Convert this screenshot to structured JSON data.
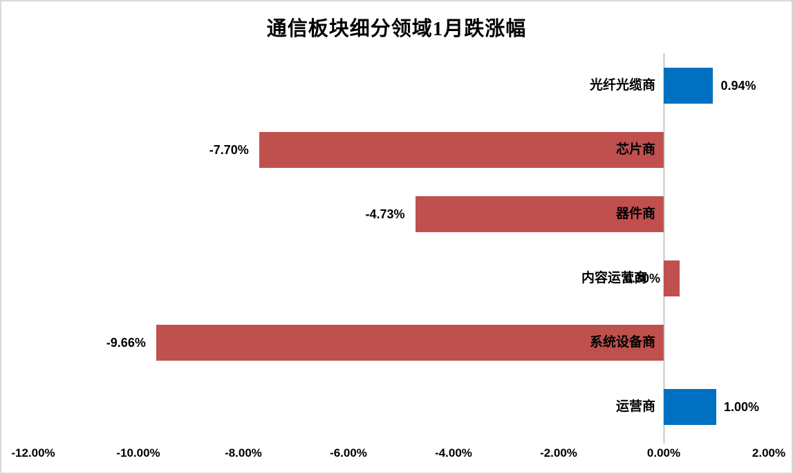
{
  "window": {
    "background": "#FFFFFF",
    "border_color": "#D9D9D9"
  },
  "chart_data": {
    "type": "bar",
    "orientation": "horizontal",
    "title": "通信板块细分领域1月跌涨幅",
    "categories": [
      "光纤光缆商",
      "芯片商",
      "器件商",
      "内容运营商",
      "系统设备商",
      "运营商"
    ],
    "values": [
      0.94,
      -7.7,
      -4.73,
      0.3,
      -9.66,
      1.0
    ],
    "value_labels": [
      "0.94%",
      "-7.70%",
      "-4.73%",
      "0.30%",
      "-9.66%",
      "1.00%"
    ],
    "bar_colors": [
      "#0070C0",
      "#C0504D",
      "#C0504D",
      "#C0504D",
      "#C0504D",
      "#0070C0"
    ],
    "x_ticks": [
      -12,
      -10,
      -8,
      -6,
      -4,
      -2,
      0,
      2
    ],
    "x_tick_labels": [
      "-12.00%",
      "-10.00%",
      "-8.00%",
      "-6.00%",
      "-4.00%",
      "-2.00%",
      "0.00%",
      "2.00%"
    ],
    "xlim": [
      -12,
      2
    ],
    "grid": false,
    "legend": false,
    "axis_line_color": "#D9D9D9",
    "text_color": "#000000"
  }
}
